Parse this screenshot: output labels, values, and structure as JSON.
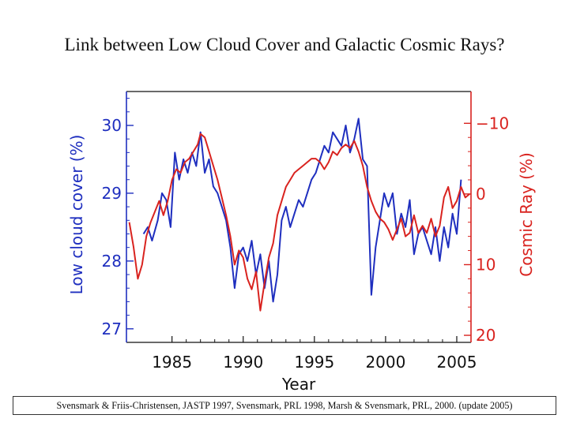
{
  "title": "Link between Low Cloud Cover and Galactic Cosmic Rays?",
  "citation": "Svensmark & Friis-Christensen, JASTP 1997, Svensmark, PRL  1998, Marsh & Svensmark, PRL, 2000. (update 2005)",
  "colors": {
    "cloud": "#1f2fbf",
    "cosmic": "#d9231f",
    "axis": "#111111"
  },
  "chart_data": {
    "type": "line",
    "title": "Link between Low Cloud Cover and Galactic Cosmic Rays?",
    "xlabel": "Year",
    "xlim": [
      1981.8,
      2006.0
    ],
    "xticks": [
      1985,
      1990,
      1995,
      2000,
      2005
    ],
    "xtick_labels": [
      "1985",
      "1990",
      "1995",
      "2000",
      "2005"
    ],
    "left_axis": {
      "label": "Low cloud cover (%)",
      "ylim": [
        26.8,
        30.5
      ],
      "ticks": [
        27,
        28,
        29,
        30
      ],
      "tick_labels": [
        "27",
        "28",
        "29",
        "30"
      ]
    },
    "right_axis": {
      "label": "Cosmic Ray (%)",
      "ylim": [
        21.0,
        -14.5
      ],
      "ticks": [
        -10,
        0,
        10,
        20
      ],
      "tick_labels": [
        "−10",
        "0",
        "10",
        "20"
      ]
    },
    "series": [
      {
        "name": "Low cloud cover",
        "axis": "left",
        "x": [
          1983.0,
          1983.3,
          1983.6,
          1984.0,
          1984.3,
          1984.6,
          1984.9,
          1985.2,
          1985.5,
          1985.8,
          1986.1,
          1986.4,
          1986.7,
          1987.0,
          1987.3,
          1987.6,
          1987.9,
          1988.2,
          1988.5,
          1988.8,
          1989.1,
          1989.4,
          1989.7,
          1990.0,
          1990.3,
          1990.6,
          1990.9,
          1991.2,
          1991.5,
          1991.8,
          1992.1,
          1992.4,
          1992.7,
          1993.0,
          1993.3,
          1993.6,
          1993.9,
          1994.2,
          1994.5,
          1994.8,
          1995.1,
          1995.4,
          1995.7,
          1996.0,
          1996.3,
          1996.6,
          1996.9,
          1997.2,
          1997.5,
          1997.8,
          1998.1,
          1998.4,
          1998.7,
          1999.0,
          1999.3,
          1999.6,
          1999.9,
          2000.2,
          2000.5,
          2000.8,
          2001.1,
          2001.4,
          2001.7,
          2002.0,
          2002.3,
          2002.6,
          2002.9,
          2003.2,
          2003.5,
          2003.8,
          2004.1,
          2004.4,
          2004.7,
          2005.0,
          2005.3
        ],
        "values": [
          28.4,
          28.5,
          28.3,
          28.6,
          29.0,
          28.9,
          28.5,
          29.6,
          29.2,
          29.5,
          29.3,
          29.6,
          29.4,
          29.9,
          29.3,
          29.5,
          29.1,
          29.0,
          28.8,
          28.6,
          28.2,
          27.6,
          28.1,
          28.2,
          28.0,
          28.3,
          27.8,
          28.1,
          27.6,
          28.0,
          27.4,
          27.8,
          28.6,
          28.8,
          28.5,
          28.7,
          28.9,
          28.8,
          29.0,
          29.2,
          29.3,
          29.5,
          29.7,
          29.6,
          29.9,
          29.8,
          29.7,
          30.0,
          29.6,
          29.8,
          30.1,
          29.5,
          29.4,
          27.5,
          28.2,
          28.6,
          29.0,
          28.8,
          29.0,
          28.4,
          28.7,
          28.5,
          28.9,
          28.1,
          28.4,
          28.5,
          28.3,
          28.1,
          28.5,
          28.0,
          28.5,
          28.2,
          28.7,
          28.4,
          29.2
        ]
      },
      {
        "name": "Cosmic Ray",
        "axis": "right",
        "x": [
          1982.0,
          1982.3,
          1982.6,
          1982.9,
          1983.2,
          1983.5,
          1983.8,
          1984.1,
          1984.4,
          1984.7,
          1985.0,
          1985.3,
          1985.6,
          1985.9,
          1986.2,
          1986.5,
          1986.8,
          1987.0,
          1987.3,
          1987.6,
          1987.9,
          1988.2,
          1988.5,
          1988.8,
          1989.1,
          1989.4,
          1989.7,
          1990.0,
          1990.3,
          1990.6,
          1990.9,
          1991.2,
          1991.5,
          1991.8,
          1992.1,
          1992.4,
          1992.7,
          1993.0,
          1993.3,
          1993.6,
          1993.9,
          1994.2,
          1994.5,
          1994.8,
          1995.1,
          1995.4,
          1995.7,
          1996.0,
          1996.3,
          1996.6,
          1996.9,
          1997.2,
          1997.5,
          1997.8,
          1998.1,
          1998.4,
          1998.7,
          1999.0,
          1999.3,
          1999.6,
          1999.9,
          2000.2,
          2000.5,
          2000.8,
          2001.1,
          2001.4,
          2001.7,
          2002.0,
          2002.3,
          2002.6,
          2002.9,
          2003.2,
          2003.5,
          2003.8,
          2004.1,
          2004.4,
          2004.7,
          2005.0,
          2005.3,
          2005.6,
          2005.9
        ],
        "values": [
          4.0,
          7.5,
          12.0,
          10.0,
          6.0,
          4.0,
          2.5,
          1.0,
          3.0,
          1.0,
          -2.0,
          -3.5,
          -3.0,
          -4.5,
          -5.0,
          -6.0,
          -7.0,
          -8.5,
          -8.0,
          -6.0,
          -4.0,
          -2.0,
          0.5,
          3.0,
          6.0,
          10.0,
          8.0,
          9.0,
          12.0,
          13.5,
          11.0,
          16.5,
          12.5,
          9.0,
          7.0,
          3.0,
          1.0,
          -1.0,
          -2.0,
          -3.0,
          -3.5,
          -4.0,
          -4.5,
          -5.0,
          -5.0,
          -4.5,
          -3.5,
          -4.5,
          -6.0,
          -5.5,
          -6.5,
          -7.0,
          -6.5,
          -7.5,
          -6.0,
          -4.0,
          -1.0,
          1.0,
          2.5,
          3.5,
          4.0,
          5.0,
          6.5,
          5.0,
          3.5,
          6.0,
          5.5,
          3.0,
          5.5,
          4.5,
          5.5,
          3.5,
          6.0,
          4.5,
          0.5,
          -1.0,
          2.0,
          1.0,
          -1.0,
          0.5,
          0.0
        ]
      }
    ]
  }
}
